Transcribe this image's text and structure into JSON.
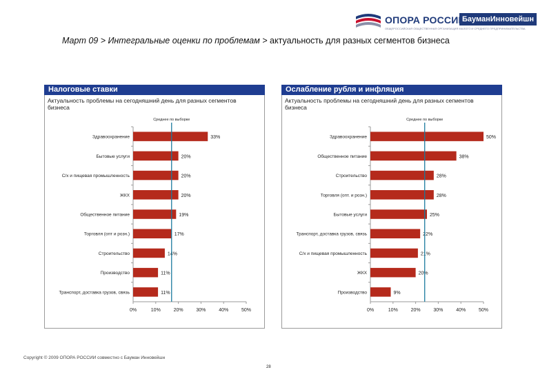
{
  "header": {
    "logo_text": "ОПОРА РОССИИ",
    "logo_badge": "БауманИнновейшн",
    "logo_subtitle": "ОБЩЕРОССИЙСКАЯ ОБЩЕСТВЕННАЯ ОРГАНИЗАЦИЯ МАЛОГО И СРЕДНЕГО ПРЕДПРИНИМАТЕЛЬСТВА",
    "colors": {
      "brand": "#1f3a7a",
      "flag_red": "#c8102e"
    }
  },
  "title": {
    "part1": "Март 09 > Интегральные оценки по проблемам > ",
    "part2": "актуальность для разных сегментов бизнеса"
  },
  "chart_data": [
    {
      "type": "bar",
      "orientation": "horizontal",
      "title": "Налоговые ставки",
      "subtitle": "Актуальность проблемы на сегодняшний день для разных сегментов бизнеса",
      "reference_line_label": "Среднее по выборке",
      "reference_value": 17,
      "categories": [
        "Здравоохранение",
        "Бытовые услуги",
        "С/х и пищевая промышленность",
        "ЖКХ",
        "Общественное питание",
        "Торговля (опт и розн.)",
        "Строительство",
        "Производство",
        "Транспорт, доставка грузов, связь"
      ],
      "values": [
        33,
        20,
        20,
        20,
        19,
        17,
        14,
        11,
        11
      ],
      "value_labels": [
        "33%",
        "20%",
        "20%",
        "20%",
        "19%",
        "17%",
        "14%",
        "11%",
        "11%"
      ],
      "xticks": [
        "0%",
        "10%",
        "20%",
        "30%",
        "40%",
        "50%"
      ],
      "xlim": [
        0,
        50
      ],
      "bar_color": "#b52a1c",
      "line_color": "#1a7a9e"
    },
    {
      "type": "bar",
      "orientation": "horizontal",
      "title": "Ослабление рубля и инфляция",
      "subtitle": "Актуальность проблемы на сегодняшний день для разных сегментов бизнеса",
      "reference_line_label": "Среднее по выборке",
      "reference_value": 24,
      "categories": [
        "Здравоохранение",
        "Общественное питание",
        "Строительство",
        "Торговля (опт. и розн.)",
        "Бытовые услуги",
        "Транспорт, доставка грузов, связь",
        "С/х и пищевая промышленность",
        "ЖКХ",
        "Производство"
      ],
      "values": [
        50,
        38,
        28,
        28,
        25,
        22,
        21,
        20,
        9
      ],
      "value_labels": [
        "50%",
        "38%",
        "28%",
        "28%",
        "25%",
        "22%",
        "21%",
        "20%",
        "9%"
      ],
      "xticks": [
        "0%",
        "10%",
        "20%",
        "30%",
        "40%",
        "50%"
      ],
      "xlim": [
        0,
        50
      ],
      "bar_color": "#b52a1c",
      "line_color": "#1a7a9e"
    }
  ],
  "footer": {
    "copyright": "Copyright © 2009 ОПОРА РОССИИ совместно с Бауман Инновейшн",
    "page_number": "28"
  }
}
